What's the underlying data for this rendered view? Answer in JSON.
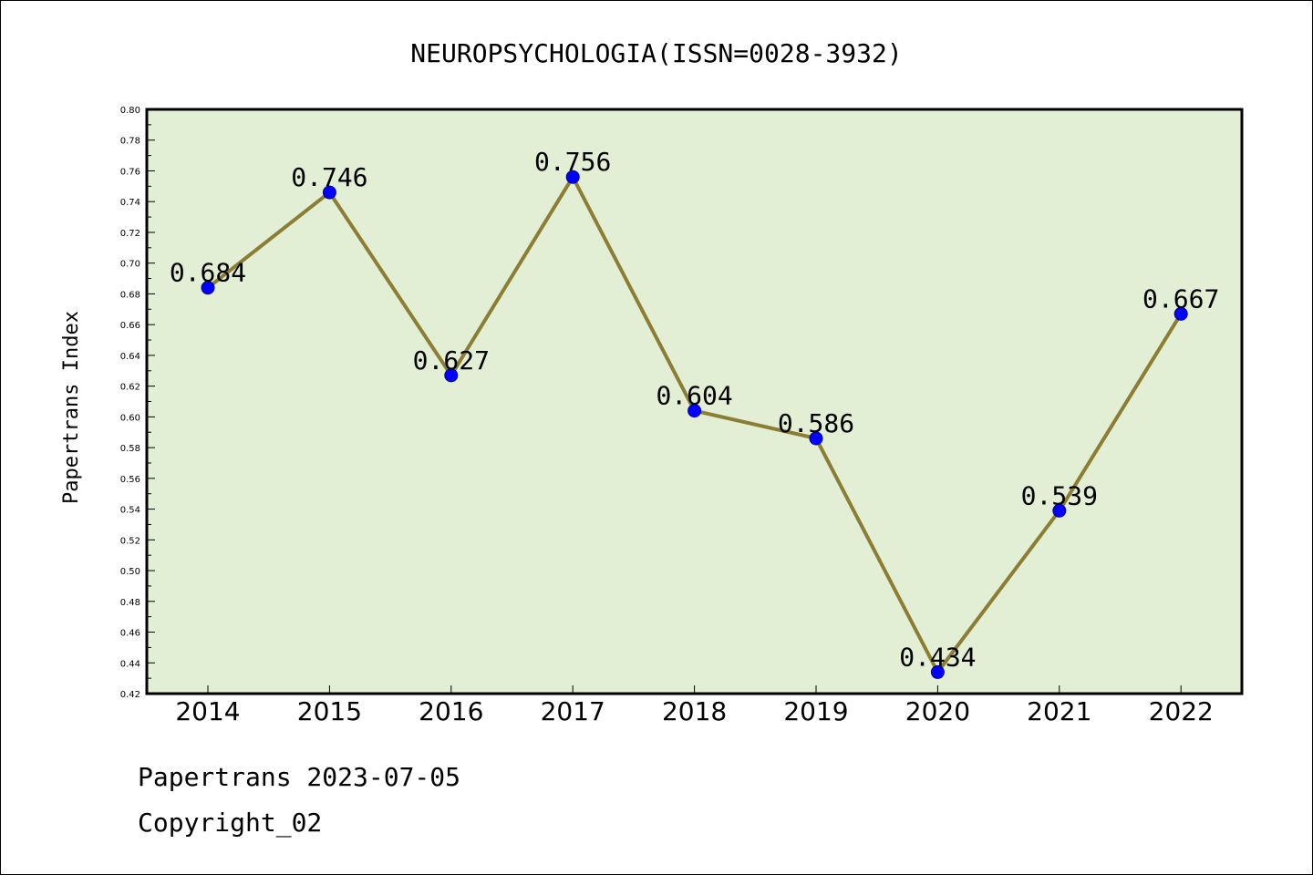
{
  "chart_data": {
    "type": "line",
    "title": "NEUROPSYCHOLOGIA(ISSN=0028-3932)",
    "xlabel": "",
    "ylabel": "Papertrans Index",
    "categories": [
      "2014",
      "2015",
      "2016",
      "2017",
      "2018",
      "2019",
      "2020",
      "2021",
      "2022"
    ],
    "series": [
      {
        "values": [
          0.684,
          0.746,
          0.627,
          0.756,
          0.604,
          0.586,
          0.434,
          0.539,
          0.667
        ],
        "data_labels": [
          "0.684",
          "0.746",
          "0.627",
          "0.756",
          "0.604",
          "0.586",
          "0.434",
          "0.539",
          "0.667"
        ]
      }
    ],
    "ylim": [
      0.42,
      0.8
    ],
    "yticks": [
      "0.42",
      "0.44",
      "0.46",
      "0.48",
      "0.50",
      "0.52",
      "0.54",
      "0.56",
      "0.58",
      "0.60",
      "0.62",
      "0.64",
      "0.66",
      "0.68",
      "0.70",
      "0.72",
      "0.74",
      "0.76",
      "0.78",
      "0.80"
    ],
    "grid": false,
    "colors": {
      "plot_background": "#e2efd5",
      "line": "#8b7d33",
      "marker": "#0000ff"
    }
  },
  "footer": {
    "line1": "Papertrans 2023-07-05",
    "line2": "Copyright_02"
  }
}
